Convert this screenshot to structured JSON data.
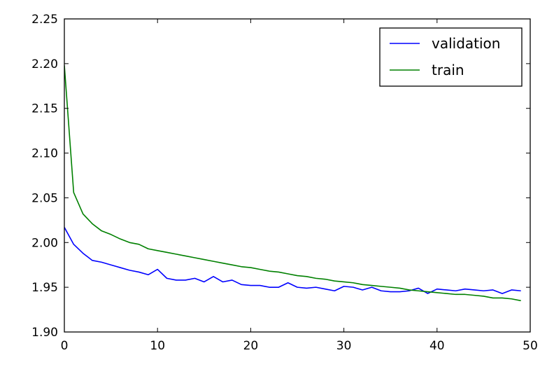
{
  "chart_data": {
    "type": "line",
    "title": "",
    "xlabel": "",
    "ylabel": "",
    "xlim": [
      0,
      50
    ],
    "ylim": [
      1.9,
      2.25
    ],
    "x_ticks": [
      0,
      10,
      20,
      30,
      40,
      50
    ],
    "x_tick_labels": [
      "0",
      "10",
      "20",
      "30",
      "40",
      "50"
    ],
    "y_ticks": [
      1.9,
      1.95,
      2.0,
      2.05,
      2.1,
      2.15,
      2.2,
      2.25
    ],
    "y_tick_labels": [
      "1.90",
      "1.95",
      "2.00",
      "2.05",
      "2.10",
      "2.15",
      "2.20",
      "2.25"
    ],
    "grid": false,
    "legend_position": "top-right",
    "x": [
      0,
      1,
      2,
      3,
      4,
      5,
      6,
      7,
      8,
      9,
      10,
      11,
      12,
      13,
      14,
      15,
      16,
      17,
      18,
      19,
      20,
      21,
      22,
      23,
      24,
      25,
      26,
      27,
      28,
      29,
      30,
      31,
      32,
      33,
      34,
      35,
      36,
      37,
      38,
      39,
      40,
      41,
      42,
      43,
      44,
      45,
      46,
      47,
      48,
      49
    ],
    "series": [
      {
        "name": "validation",
        "color": "#0000ff",
        "values": [
          2.017,
          1.998,
          1.988,
          1.98,
          1.978,
          1.975,
          1.972,
          1.969,
          1.967,
          1.964,
          1.97,
          1.96,
          1.958,
          1.958,
          1.96,
          1.956,
          1.962,
          1.956,
          1.958,
          1.953,
          1.952,
          1.952,
          1.95,
          1.95,
          1.955,
          1.95,
          1.949,
          1.95,
          1.948,
          1.946,
          1.951,
          1.95,
          1.947,
          1.95,
          1.946,
          1.945,
          1.945,
          1.946,
          1.949,
          1.943,
          1.948,
          1.947,
          1.946,
          1.948,
          1.947,
          1.946,
          1.947,
          1.943,
          1.947,
          1.946
        ]
      },
      {
        "name": "train",
        "color": "#008000",
        "values": [
          2.198,
          2.056,
          2.032,
          2.021,
          2.013,
          2.009,
          2.004,
          2.0,
          1.998,
          1.993,
          1.991,
          1.989,
          1.987,
          1.985,
          1.983,
          1.981,
          1.979,
          1.977,
          1.975,
          1.973,
          1.972,
          1.97,
          1.968,
          1.967,
          1.965,
          1.963,
          1.962,
          1.96,
          1.959,
          1.957,
          1.956,
          1.955,
          1.953,
          1.952,
          1.951,
          1.95,
          1.949,
          1.947,
          1.946,
          1.945,
          1.944,
          1.943,
          1.942,
          1.942,
          1.941,
          1.94,
          1.938,
          1.938,
          1.937,
          1.935
        ]
      }
    ]
  }
}
